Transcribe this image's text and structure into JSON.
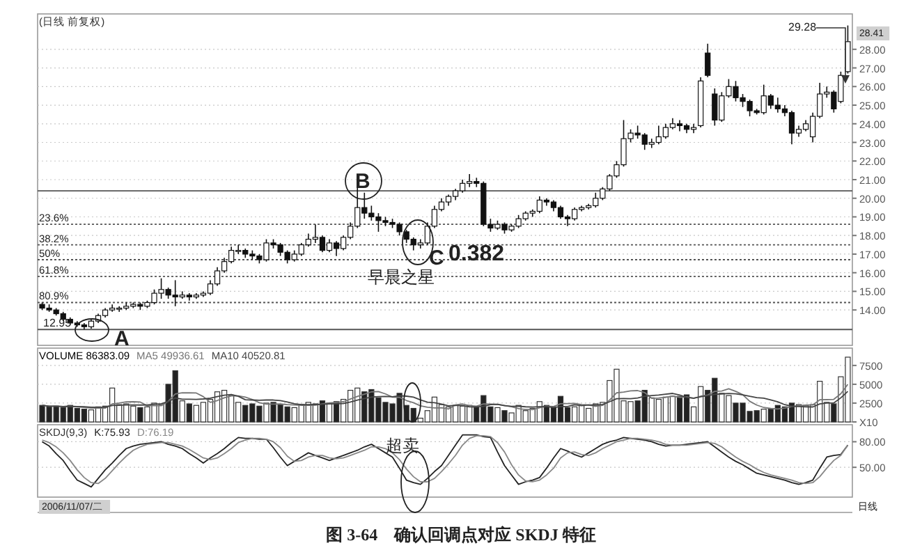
{
  "chart_data": [
    {
      "type": "candlestick",
      "title": "(日线 前复权)",
      "categories": [
        null,
        null,
        null,
        null,
        null,
        null,
        null,
        null,
        null,
        null,
        null,
        null,
        null,
        null,
        null,
        null,
        null,
        null,
        null,
        null,
        null,
        null,
        null,
        null,
        null,
        null,
        null,
        null,
        null,
        null,
        null,
        null,
        null,
        null,
        null,
        null,
        null,
        null,
        null,
        null,
        null,
        null,
        null,
        null,
        null,
        null,
        null,
        null,
        null,
        null,
        null,
        null,
        null,
        null,
        null,
        null,
        null,
        null,
        null,
        null,
        null,
        null,
        null,
        null,
        null,
        null,
        null,
        null,
        null,
        null,
        null,
        null,
        null,
        null,
        null,
        null,
        null,
        null,
        null,
        null,
        null,
        null,
        null,
        null,
        null,
        null,
        null,
        null,
        null,
        null,
        null,
        null,
        null,
        null,
        null,
        null,
        null,
        null,
        null,
        null,
        null,
        null,
        null,
        null,
        null,
        null,
        null,
        null,
        null,
        null,
        null,
        null,
        null,
        null,
        null,
        null
      ],
      "ohlc": [
        [
          14.3,
          14.4,
          14.0,
          14.1
        ],
        [
          14.1,
          14.3,
          13.9,
          14.0
        ],
        [
          14.0,
          14.1,
          13.7,
          13.8
        ],
        [
          13.8,
          13.9,
          13.4,
          13.5
        ],
        [
          13.5,
          13.6,
          13.2,
          13.3
        ],
        [
          13.3,
          13.4,
          13.1,
          13.2
        ],
        [
          13.2,
          13.3,
          12.95,
          13.1
        ],
        [
          13.1,
          13.5,
          13.0,
          13.4
        ],
        [
          13.4,
          13.8,
          13.3,
          13.7
        ],
        [
          13.7,
          14.1,
          13.6,
          14.0
        ],
        [
          14.0,
          14.3,
          13.9,
          14.1
        ],
        [
          14.1,
          14.2,
          13.9,
          14.1
        ],
        [
          14.1,
          14.4,
          14.0,
          14.2
        ],
        [
          14.2,
          14.4,
          14.1,
          14.3
        ],
        [
          14.3,
          14.4,
          14.0,
          14.2
        ],
        [
          14.2,
          14.5,
          14.1,
          14.4
        ],
        [
          14.4,
          15.1,
          14.3,
          14.9
        ],
        [
          14.9,
          15.7,
          14.6,
          15.1
        ],
        [
          15.1,
          15.2,
          14.6,
          14.8
        ],
        [
          14.8,
          15.6,
          14.2,
          14.7
        ],
        [
          14.7,
          15.0,
          14.6,
          14.8
        ],
        [
          14.8,
          14.9,
          14.5,
          14.7
        ],
        [
          14.7,
          14.9,
          14.6,
          14.8
        ],
        [
          14.8,
          15.0,
          14.7,
          14.9
        ],
        [
          14.9,
          15.6,
          14.8,
          15.4
        ],
        [
          15.4,
          16.3,
          15.3,
          16.1
        ],
        [
          16.1,
          16.8,
          16.0,
          16.6
        ],
        [
          16.6,
          17.4,
          16.5,
          17.2
        ],
        [
          17.2,
          17.5,
          17.0,
          17.2
        ],
        [
          17.2,
          17.3,
          16.8,
          17.0
        ],
        [
          17.0,
          17.2,
          16.7,
          16.9
        ],
        [
          16.9,
          17.0,
          16.5,
          16.7
        ],
        [
          16.7,
          17.8,
          16.6,
          17.6
        ],
        [
          17.6,
          17.8,
          17.3,
          17.5
        ],
        [
          17.5,
          17.6,
          16.9,
          17.1
        ],
        [
          17.1,
          17.2,
          16.5,
          16.7
        ],
        [
          16.7,
          17.2,
          16.6,
          17.0
        ],
        [
          17.0,
          17.6,
          16.9,
          17.5
        ],
        [
          17.5,
          18.1,
          17.4,
          17.8
        ],
        [
          17.8,
          18.6,
          17.6,
          17.9
        ],
        [
          17.9,
          18.0,
          17.1,
          17.2
        ],
        [
          17.2,
          17.8,
          17.1,
          17.6
        ],
        [
          17.6,
          17.7,
          16.9,
          17.3
        ],
        [
          17.3,
          18.0,
          17.2,
          17.9
        ],
        [
          17.9,
          18.7,
          17.8,
          18.5
        ],
        [
          18.5,
          20.6,
          18.4,
          19.5
        ],
        [
          19.5,
          20.3,
          18.9,
          19.2
        ],
        [
          19.2,
          19.6,
          18.8,
          19.0
        ],
        [
          19.0,
          19.2,
          18.2,
          18.8
        ],
        [
          18.8,
          19.0,
          18.5,
          18.7
        ],
        [
          18.7,
          18.9,
          18.4,
          18.6
        ],
        [
          18.6,
          18.7,
          18.0,
          18.2
        ],
        [
          18.2,
          18.3,
          17.6,
          17.8
        ],
        [
          17.8,
          17.9,
          17.2,
          17.5
        ],
        [
          17.5,
          17.8,
          17.3,
          17.6
        ],
        [
          17.6,
          18.7,
          17.5,
          18.5
        ],
        [
          18.5,
          19.6,
          18.4,
          19.4
        ],
        [
          19.4,
          20.0,
          19.3,
          19.8
        ],
        [
          19.8,
          20.2,
          19.6,
          20.1
        ],
        [
          20.1,
          20.5,
          19.9,
          20.4
        ],
        [
          20.4,
          21.0,
          20.3,
          20.8
        ],
        [
          20.8,
          21.3,
          20.6,
          20.9
        ],
        [
          20.9,
          21.1,
          20.6,
          20.8
        ],
        [
          20.8,
          20.9,
          18.5,
          18.6
        ],
        [
          18.6,
          18.9,
          18.2,
          18.4
        ],
        [
          18.4,
          18.8,
          18.3,
          18.6
        ],
        [
          18.6,
          18.7,
          18.1,
          18.3
        ],
        [
          18.3,
          18.6,
          18.2,
          18.5
        ],
        [
          18.5,
          19.1,
          18.4,
          18.9
        ],
        [
          18.9,
          19.3,
          18.8,
          19.2
        ],
        [
          19.2,
          19.4,
          19.0,
          19.3
        ],
        [
          19.3,
          20.1,
          19.2,
          19.9
        ],
        [
          19.9,
          20.0,
          19.6,
          19.8
        ],
        [
          19.8,
          19.9,
          19.3,
          19.5
        ],
        [
          19.5,
          19.6,
          18.9,
          19.0
        ],
        [
          19.0,
          19.1,
          18.5,
          18.9
        ],
        [
          18.9,
          19.5,
          18.8,
          19.4
        ],
        [
          19.4,
          19.6,
          19.3,
          19.5
        ],
        [
          19.5,
          19.7,
          19.4,
          19.6
        ],
        [
          19.6,
          20.3,
          19.5,
          20.0
        ],
        [
          20.0,
          20.6,
          19.9,
          20.5
        ],
        [
          20.5,
          21.3,
          20.4,
          21.2
        ],
        [
          21.2,
          22.0,
          21.1,
          21.8
        ],
        [
          21.8,
          24.2,
          21.7,
          23.2
        ],
        [
          23.2,
          23.7,
          23.0,
          23.5
        ],
        [
          23.5,
          23.9,
          23.2,
          23.4
        ],
        [
          23.4,
          23.5,
          22.6,
          22.9
        ],
        [
          22.9,
          23.2,
          22.7,
          23.0
        ],
        [
          23.0,
          23.9,
          22.9,
          23.3
        ],
        [
          23.3,
          24.0,
          23.2,
          23.8
        ],
        [
          23.8,
          24.3,
          23.7,
          24.0
        ],
        [
          24.0,
          24.2,
          23.6,
          23.9
        ],
        [
          23.9,
          24.0,
          23.5,
          23.7
        ],
        [
          23.7,
          24.0,
          23.5,
          23.8
        ],
        [
          23.9,
          26.5,
          23.8,
          26.3
        ],
        [
          27.8,
          28.3,
          26.5,
          26.6
        ],
        [
          25.6,
          25.9,
          23.9,
          24.2
        ],
        [
          24.2,
          25.7,
          24.1,
          25.5
        ],
        [
          25.5,
          26.4,
          25.4,
          26.0
        ],
        [
          26.0,
          26.3,
          25.2,
          25.4
        ],
        [
          25.4,
          25.6,
          24.9,
          25.2
        ],
        [
          25.2,
          25.3,
          24.4,
          24.7
        ],
        [
          24.7,
          24.8,
          24.5,
          24.6
        ],
        [
          24.6,
          26.1,
          24.5,
          25.5
        ],
        [
          25.5,
          25.6,
          24.8,
          25.0
        ],
        [
          25.0,
          25.4,
          24.6,
          24.8
        ],
        [
          24.8,
          25.0,
          24.4,
          24.6
        ],
        [
          24.6,
          24.7,
          22.9,
          23.5
        ],
        [
          23.5,
          23.9,
          23.3,
          23.7
        ],
        [
          23.7,
          24.2,
          23.6,
          24.0
        ],
        [
          23.3,
          24.6,
          23.0,
          24.4
        ],
        [
          24.4,
          26.2,
          24.3,
          25.6
        ],
        [
          25.6,
          26.0,
          25.4,
          25.7
        ],
        [
          25.7,
          25.8,
          24.6,
          24.8
        ],
        [
          25.2,
          26.8,
          25.1,
          26.6
        ],
        [
          26.8,
          29.28,
          26.7,
          28.41
        ]
      ],
      "ylim": [
        12.1,
        29.9
      ],
      "yticks": [
        {
          "value": 14,
          "label": "14.00"
        },
        {
          "value": 15,
          "label": "15.00"
        },
        {
          "value": 16,
          "label": "16.00"
        },
        {
          "value": 17,
          "label": "17.00"
        },
        {
          "value": 18,
          "label": "18.00"
        },
        {
          "value": 19,
          "label": "19.00"
        },
        {
          "value": 20,
          "label": "20.00"
        },
        {
          "value": 21,
          "label": "21.00"
        },
        {
          "value": 22,
          "label": "22.00"
        },
        {
          "value": 23,
          "label": "23.00"
        },
        {
          "value": 24,
          "label": "24.00"
        },
        {
          "value": 25,
          "label": "25.00"
        },
        {
          "value": 26,
          "label": "26.00"
        },
        {
          "value": 27,
          "label": "27.00"
        },
        {
          "value": 28,
          "label": "28.00"
        }
      ],
      "grid": "y",
      "ref_lines": [
        {
          "axis": "y",
          "value": 20.4,
          "line_style": "solid",
          "color": "#555555"
        },
        {
          "axis": "y",
          "value": 18.6,
          "line_style": "dotted",
          "color": "#555555"
        },
        {
          "axis": "y",
          "value": 17.5,
          "line_style": "dotted",
          "color": "#555555"
        },
        {
          "axis": "y",
          "value": 16.7,
          "line_style": "dotted",
          "color": "#555555"
        },
        {
          "axis": "y",
          "value": 15.8,
          "line_style": "dotted",
          "color": "#555555"
        },
        {
          "axis": "y",
          "value": 14.4,
          "line_style": "dotted",
          "color": "#555555"
        },
        {
          "axis": "y",
          "value": 12.95,
          "line_style": "solid",
          "color": "#555555"
        }
      ],
      "annotations": [
        "A",
        "B",
        "C",
        "0.382",
        "早晨之星",
        {
          "text": "12.95",
          "y": 12.95
        },
        "29.28",
        "28.41",
        {
          "text": "23.6%",
          "y": 18.6
        },
        {
          "text": "38.2%",
          "y": 17.5
        },
        {
          "text": "50%",
          "y": 16.7
        },
        {
          "text": "61.8%",
          "y": 15.8
        },
        {
          "text": "80.9%",
          "y": 14.4
        }
      ]
    },
    {
      "type": "bar",
      "categories": [
        null,
        null,
        null,
        null,
        null,
        null,
        null,
        null,
        null,
        null,
        null,
        null,
        null,
        null,
        null,
        null,
        null,
        null,
        null,
        null,
        null,
        null,
        null,
        null,
        null,
        null,
        null,
        null,
        null,
        null,
        null,
        null,
        null,
        null,
        null,
        null,
        null,
        null,
        null,
        null,
        null,
        null,
        null,
        null,
        null,
        null,
        null,
        null,
        null,
        null,
        null,
        null,
        null,
        null,
        null,
        null,
        null,
        null,
        null,
        null,
        null,
        null,
        null,
        null,
        null,
        null,
        null,
        null,
        null,
        null,
        null,
        null,
        null,
        null,
        null,
        null,
        null,
        null,
        null,
        null,
        null,
        null,
        null,
        null,
        null,
        null,
        null,
        null,
        null,
        null,
        null,
        null,
        null,
        null,
        null,
        null,
        null,
        null,
        null,
        null,
        null,
        null,
        null,
        null,
        null,
        null,
        null,
        null,
        null,
        null,
        null,
        null,
        null,
        null,
        null,
        null
      ],
      "series": [
        {
          "name": "VOLUME 86383.09",
          "color": "#000000",
          "values": [
            2200,
            2000,
            2100,
            1900,
            2200,
            1800,
            1700,
            1600,
            2000,
            2100,
            4500,
            2300,
            2400,
            2100,
            1900,
            2000,
            2500,
            2300,
            5000,
            6800,
            2800,
            2400,
            2200,
            2600,
            3000,
            4000,
            4200,
            3500,
            2600,
            2200,
            2400,
            2100,
            2500,
            2600,
            2300,
            2000,
            1900,
            2300,
            2600,
            2400,
            2800,
            2500,
            2700,
            3000,
            4200,
            4500,
            4000,
            4300,
            3200,
            2600,
            2400,
            3800,
            2200,
            1800,
            500,
            1500,
            3300,
            2300,
            2000,
            2200,
            2100,
            2200,
            2000,
            3500,
            2000,
            1900,
            1500,
            1200,
            2200,
            1500,
            1800,
            2700,
            2200,
            2000,
            3400,
            1900,
            2000,
            2200,
            1800,
            2400,
            2600,
            5500,
            7000,
            2800,
            2700,
            2800,
            4200,
            3200,
            3000,
            3300,
            3400,
            3400,
            3600,
            2000,
            4700,
            4200,
            5800,
            3800,
            3500,
            2500,
            2500,
            1400,
            1500,
            1700,
            1800,
            2200,
            2000,
            2500,
            2300,
            2200,
            2300,
            5400,
            2600,
            2400,
            6000,
            8600
          ],
          "colors": [
            "#222222",
            "#222222",
            "#222222",
            "#222222",
            "#222222",
            "#222222",
            "#222222",
            "#ffffff",
            "#ffffff",
            "#ffffff",
            "#ffffff",
            "#ffffff",
            "#ffffff",
            "#ffffff",
            "#222222",
            "#ffffff",
            "#ffffff",
            "#ffffff",
            "#222222",
            "#222222",
            "#ffffff",
            "#222222",
            "#ffffff",
            "#ffffff",
            "#ffffff",
            "#ffffff",
            "#ffffff",
            "#ffffff",
            "#ffffff",
            "#222222",
            "#222222",
            "#222222",
            "#ffffff",
            "#222222",
            "#222222",
            "#222222",
            "#ffffff",
            "#ffffff",
            "#ffffff",
            "#ffffff",
            "#222222",
            "#ffffff",
            "#222222",
            "#ffffff",
            "#ffffff",
            "#ffffff",
            "#222222",
            "#222222",
            "#222222",
            "#222222",
            "#222222",
            "#222222",
            "#222222",
            "#222222",
            "#ffffff",
            "#ffffff",
            "#ffffff",
            "#ffffff",
            "#ffffff",
            "#ffffff",
            "#ffffff",
            "#ffffff",
            "#222222",
            "#222222",
            "#222222",
            "#ffffff",
            "#222222",
            "#ffffff",
            "#ffffff",
            "#ffffff",
            "#ffffff",
            "#ffffff",
            "#222222",
            "#222222",
            "#222222",
            "#222222",
            "#ffffff",
            "#ffffff",
            "#ffffff",
            "#ffffff",
            "#ffffff",
            "#ffffff",
            "#ffffff",
            "#ffffff",
            "#ffffff",
            "#222222",
            "#222222",
            "#ffffff",
            "#ffffff",
            "#ffffff",
            "#ffffff",
            "#222222",
            "#222222",
            "#ffffff",
            "#ffffff",
            "#222222",
            "#222222",
            "#ffffff",
            "#ffffff",
            "#222222",
            "#222222",
            "#222222",
            "#222222",
            "#ffffff",
            "#222222",
            "#222222",
            "#222222",
            "#222222",
            "#ffffff",
            "#ffffff",
            "#ffffff",
            "#ffffff",
            "#ffffff",
            "#222222",
            "#ffffff",
            "#ffffff"
          ]
        },
        {
          "name": "MA5 49936.61",
          "type": "line",
          "color": "#777777",
          "values": [
            2200,
            2100,
            2100,
            2050,
            2080,
            2000,
            1940,
            1840,
            1860,
            1840,
            2380,
            2500,
            2660,
            2680,
            2640,
            2140,
            2180,
            2160,
            2740,
            3720,
            3880,
            3860,
            3840,
            3360,
            2600,
            2840,
            3200,
            3460,
            3460,
            3300,
            2980,
            2560,
            2360,
            2360,
            2380,
            2300,
            2260,
            2220,
            2220,
            2240,
            2400,
            2520,
            2600,
            2680,
            3040,
            3380,
            3680,
            4000,
            4040,
            3720,
            3300,
            3260,
            2840,
            2560,
            2140,
            1960,
            1860,
            1880,
            1720,
            2260,
            2380,
            2160,
            2100,
            2400,
            2360,
            2320,
            2180,
            2020,
            1760,
            1660,
            1640,
            1880,
            2080,
            2040,
            2420,
            2440,
            2460,
            2300,
            2260,
            2060,
            2200,
            2900,
            3860,
            3960,
            4120,
            4160,
            3900,
            3140,
            3180,
            3260,
            3420,
            3260,
            3340,
            3140,
            3420,
            3580,
            4060,
            4100,
            4400,
            4060,
            3620,
            2740,
            2240,
            1920,
            1780,
            1720,
            1840,
            2040,
            2160,
            2240,
            2260,
            2940,
            2960,
            3000,
            3740,
            4994
          ]
        },
        {
          "name": "MA10 40520.81",
          "type": "line",
          "color": "#444444",
          "values": [
            2200,
            2100,
            2100,
            2050,
            2080,
            2040,
            2020,
            1950,
            1960,
            1960,
            2190,
            2220,
            2250,
            2260,
            2240,
            2260,
            2340,
            2410,
            2710,
            3180,
            3010,
            3020,
            3000,
            3050,
            3160,
            3360,
            3540,
            3650,
            3410,
            2950,
            2910,
            2880,
            2910,
            2910,
            2840,
            2640,
            2410,
            2290,
            2290,
            2310,
            2350,
            2390,
            2410,
            2450,
            2640,
            2890,
            3100,
            3300,
            3360,
            3380,
            3340,
            3470,
            3420,
            3300,
            2930,
            2630,
            2560,
            2360,
            2140,
            2200,
            2170,
            2010,
            1990,
            2060,
            2310,
            2350,
            2170,
            2060,
            2080,
            2010,
            1980,
            2030,
            2050,
            1900,
            2040,
            2040,
            2270,
            2170,
            2250,
            2240,
            2320,
            2680,
            3080,
            3110,
            3090,
            3180,
            3400,
            3500,
            3570,
            3690,
            3790,
            3580,
            3240,
            3160,
            3340,
            3500,
            3660,
            3720,
            3770,
            3740,
            3600,
            3400,
            3230,
            3160,
            2920,
            2670,
            2290,
            2080,
            2040,
            2010,
            1990,
            2390,
            2500,
            2520,
            3200,
            4052
          ]
        }
      ],
      "ylim": [
        0,
        9800
      ],
      "yticks": [
        {
          "value": 0,
          "label": "X10"
        },
        2500,
        5000,
        7500
      ],
      "grid": "y",
      "legend": "top left"
    },
    {
      "type": "line",
      "title": "SKDJ(9,3)",
      "categories": [
        null,
        null,
        null,
        null,
        null,
        null,
        null,
        null,
        null,
        null,
        null,
        null,
        null,
        null,
        null,
        null,
        null,
        null,
        null,
        null,
        null,
        null,
        null,
        null,
        null,
        null,
        null,
        null,
        null,
        null,
        null,
        null,
        null,
        null,
        null,
        null,
        null,
        null,
        null,
        null,
        null,
        null,
        null,
        null,
        null,
        null,
        null,
        null,
        null,
        null,
        null,
        null,
        null,
        null,
        null,
        null,
        null,
        null,
        null,
        null,
        null,
        null,
        null,
        null,
        null,
        null,
        null,
        null,
        null,
        null,
        null,
        null,
        null,
        null,
        null,
        null,
        null,
        null,
        null,
        null,
        null,
        null,
        null,
        null,
        null,
        null,
        null,
        null,
        null,
        null,
        null,
        null,
        null,
        null,
        null,
        null,
        null,
        null,
        null,
        null,
        null,
        null,
        null,
        null,
        null,
        null,
        null,
        null,
        null,
        null,
        null,
        null,
        null,
        null,
        null,
        null
      ],
      "series": [
        {
          "name": "K:75.93",
          "color": "#222222",
          "values": [
            80,
            75,
            66,
            58,
            46,
            35,
            31,
            27,
            37,
            47,
            55,
            64,
            72,
            75,
            77,
            78,
            79,
            80,
            77,
            75,
            72,
            66,
            61,
            55,
            61,
            66,
            72,
            79,
            85,
            84,
            84,
            83,
            83,
            73,
            62,
            52,
            57,
            62,
            67,
            64,
            61,
            58,
            61,
            64,
            67,
            70,
            74,
            77,
            72,
            67,
            62,
            49,
            35,
            32,
            30,
            37,
            45,
            52,
            64,
            76,
            88,
            88,
            88,
            86,
            85,
            68,
            52,
            41,
            30,
            33,
            35,
            38,
            49,
            61,
            72,
            69,
            65,
            62,
            67,
            72,
            77,
            80,
            82,
            85,
            84,
            83,
            82,
            80,
            77,
            75,
            76,
            76,
            77,
            78,
            79,
            80,
            74,
            68,
            62,
            57,
            53,
            48,
            43,
            41,
            39,
            37,
            35,
            32,
            30,
            32,
            35,
            49,
            62,
            64,
            65,
            76
          ]
        },
        {
          "name": "D:76.19",
          "color": "#888888",
          "values": [
            82,
            79,
            74,
            67,
            58,
            47,
            38,
            32,
            31,
            37,
            46,
            55,
            63,
            70,
            74,
            77,
            78,
            79,
            79,
            77,
            75,
            71,
            66,
            61,
            59,
            61,
            66,
            72,
            79,
            82,
            84,
            84,
            83,
            80,
            73,
            63,
            57,
            58,
            62,
            64,
            64,
            61,
            60,
            61,
            64,
            67,
            70,
            74,
            74,
            72,
            67,
            59,
            48,
            39,
            33,
            33,
            37,
            45,
            54,
            64,
            76,
            84,
            87,
            87,
            86,
            79,
            68,
            53,
            41,
            34,
            33,
            35,
            41,
            49,
            61,
            67,
            68,
            65,
            64,
            67,
            72,
            76,
            80,
            82,
            84,
            84,
            83,
            82,
            80,
            77,
            76,
            76,
            76,
            77,
            78,
            79,
            78,
            74,
            68,
            62,
            57,
            53,
            48,
            44,
            41,
            39,
            37,
            35,
            32,
            31,
            32,
            39,
            49,
            58,
            64,
            76
          ]
        }
      ],
      "ylim": [
        15,
        100
      ],
      "yticks": [
        {
          "value": 50,
          "label": "50.00"
        },
        {
          "value": 80,
          "label": "80.00"
        }
      ],
      "grid": "y",
      "legend": "top left",
      "annotations": [
        "超卖",
        "2006/11/07/二",
        "日线",
        "图 3-64　确认回调点对应 SKDJ 特征"
      ]
    }
  ]
}
